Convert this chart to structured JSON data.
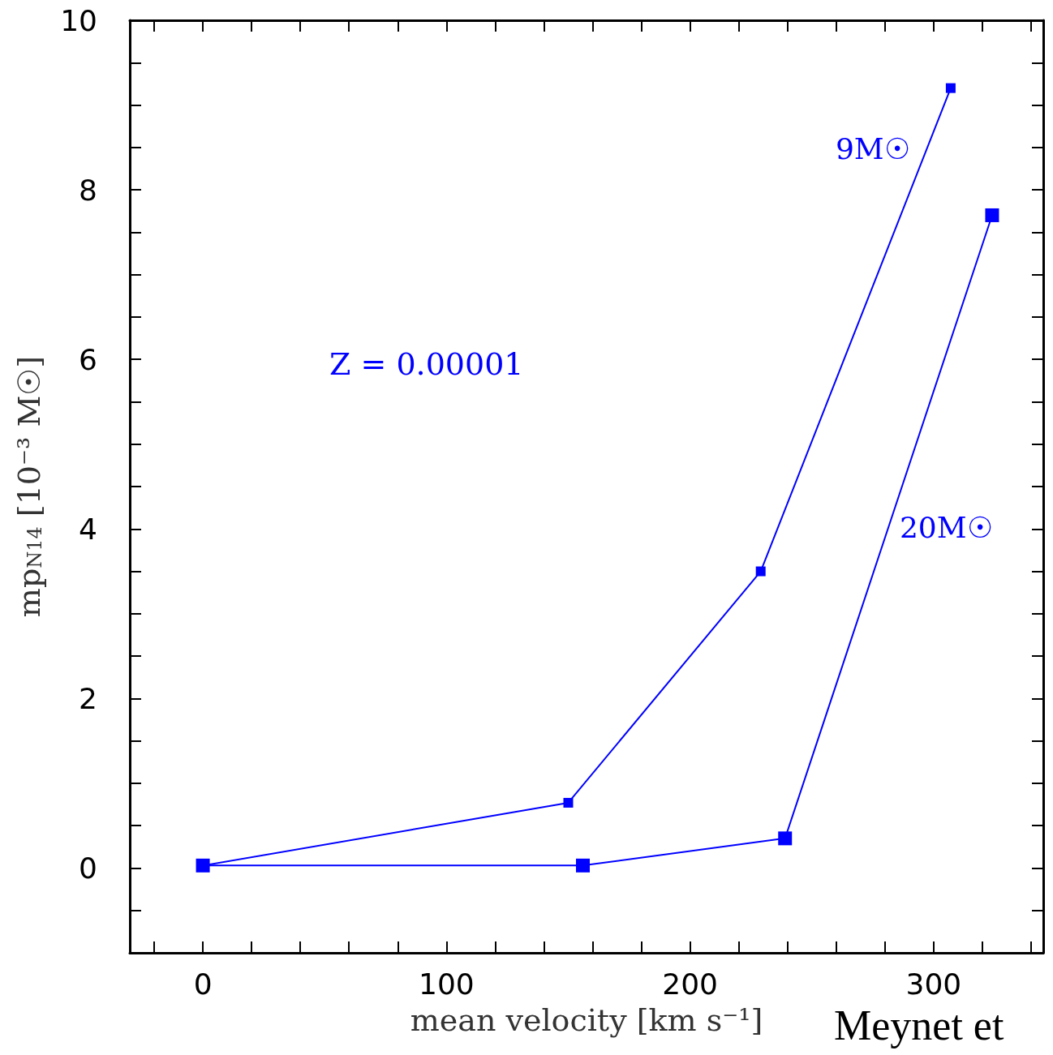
{
  "chart_data": {
    "type": "line",
    "xlabel": "mean velocity [km s⁻¹]",
    "ylabel": "mp$_{N14}$ [10⁻³ M☉]",
    "series": [
      {
        "name": "9M☉",
        "color": "#0000ff",
        "x": [
          0,
          150,
          229,
          307
        ],
        "values": [
          0.03,
          0.77,
          3.5,
          9.2
        ]
      },
      {
        "name": "20M☉",
        "color": "#0000ff",
        "x": [
          0,
          156,
          239,
          324
        ],
        "values": [
          0.03,
          0.03,
          0.35,
          7.7
        ]
      }
    ],
    "xlim": [
      -30,
      345
    ],
    "xticks": [
      0,
      100,
      200,
      300
    ],
    "ylim": [
      -1,
      10
    ],
    "yticks": [
      0,
      2,
      4,
      6,
      8,
      10
    ],
    "marker": "square",
    "line_style": "solid",
    "annotations": [
      "Z = 0.00001",
      "Meynet et"
    ]
  }
}
